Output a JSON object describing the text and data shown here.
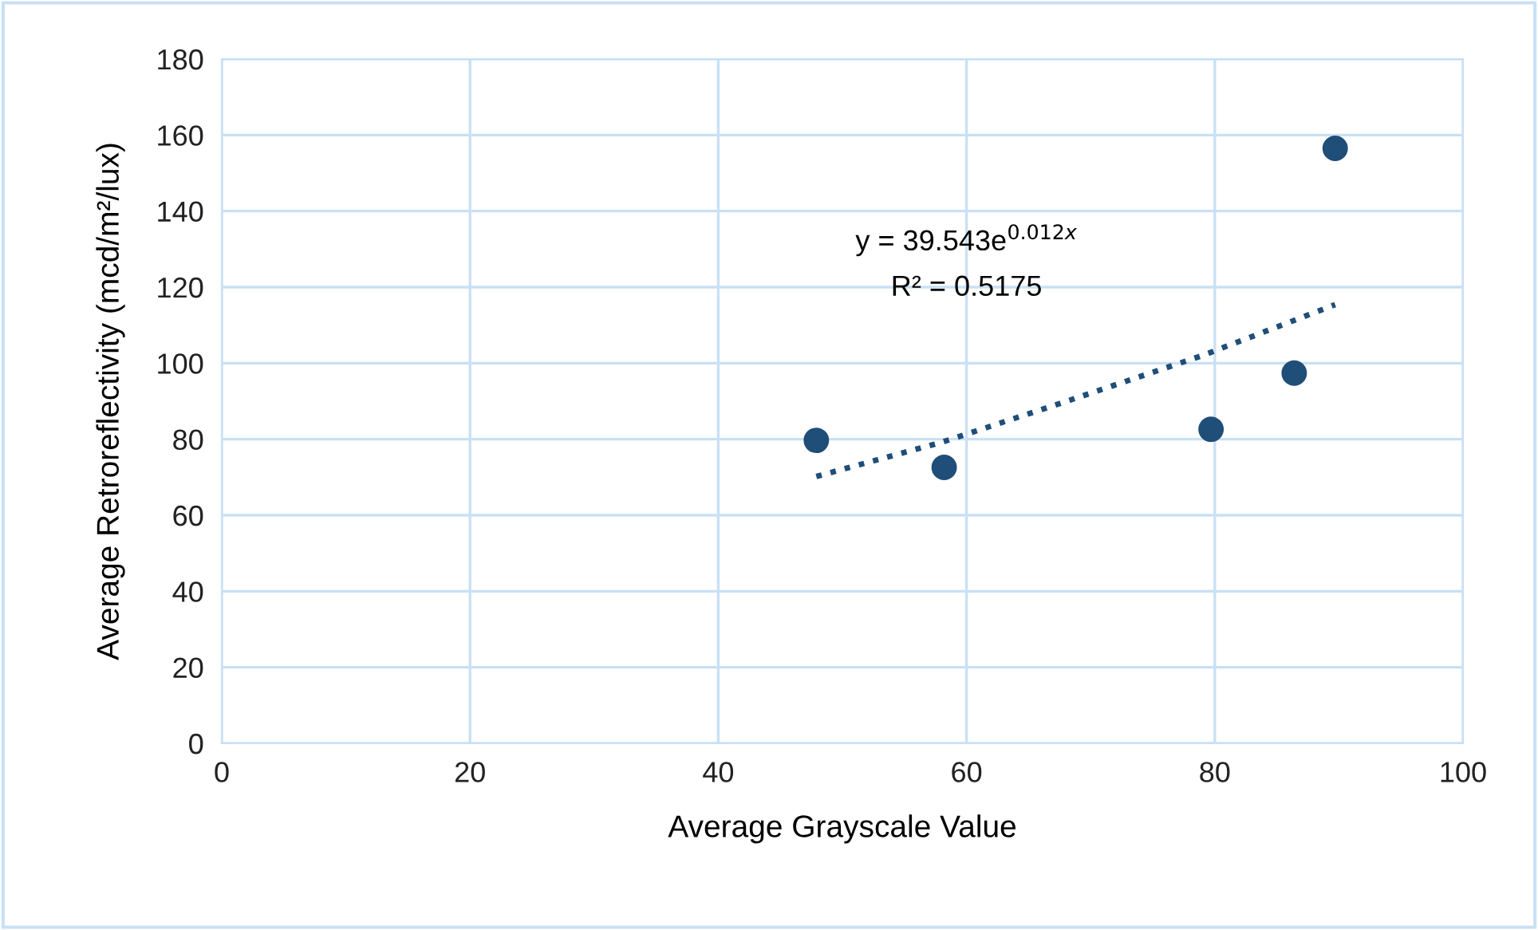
{
  "chart_data": {
    "type": "scatter",
    "xlabel": "Average Grayscale Value",
    "ylabel": "Average Retroreflectivity (mcd/m²/lux)",
    "xlim": [
      0,
      100
    ],
    "xticks": [
      0,
      20,
      40,
      60,
      80,
      100
    ],
    "ylim": [
      0,
      180
    ],
    "yticks": [
      0,
      20,
      40,
      60,
      80,
      100,
      120,
      140,
      160,
      180
    ],
    "grid": true,
    "marker": "circle",
    "series": [
      {
        "color": "#1f4e79",
        "x": [
          47.9,
          58.2,
          79.7,
          86.4,
          89.7
        ],
        "values": [
          79.7,
          72.6,
          82.6,
          97.4,
          156.5
        ]
      },
      {
        "type": "line",
        "color": "#1f4e79",
        "line_style": "dotted",
        "marker": "none",
        "x": [
          47.9,
          58,
          68,
          79,
          89.7
        ],
        "values": [
          70.2,
          79.2,
          89.9,
          102.0,
          115.4
        ]
      }
    ],
    "annotations": [
      "y = 39.543e$^{0.012x}$",
      "R² = 0.5175"
    ]
  }
}
